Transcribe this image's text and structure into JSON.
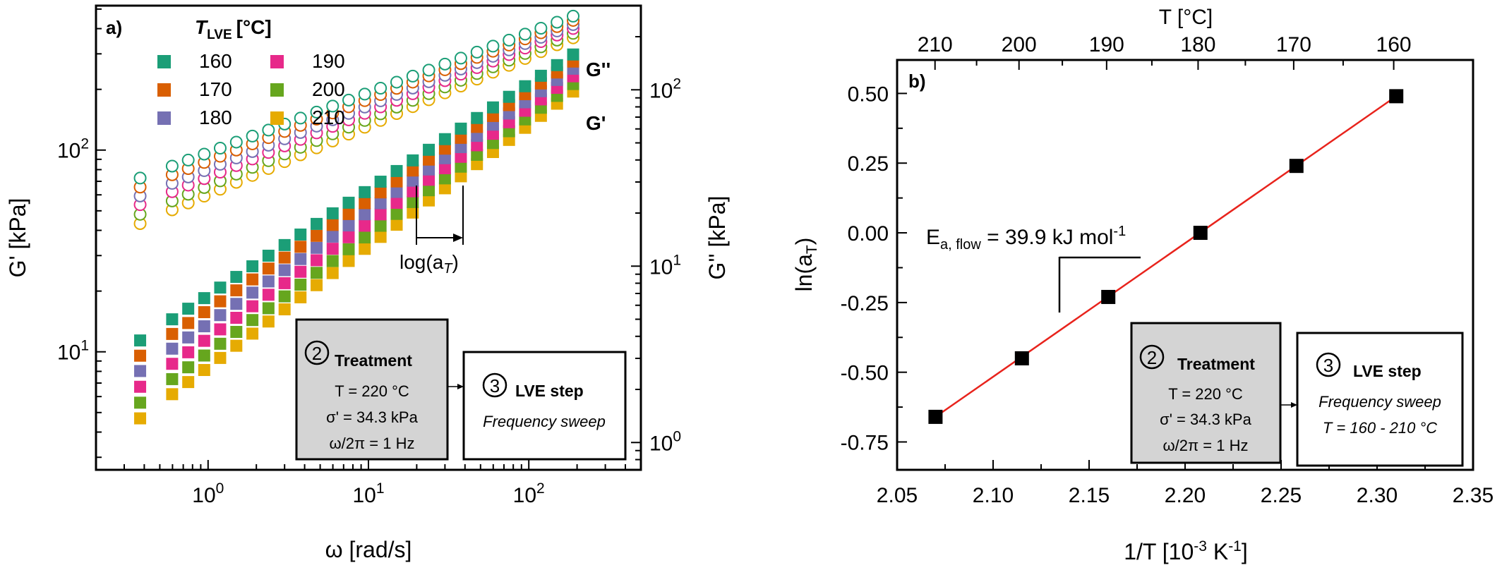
{
  "chart_data": [
    {
      "type": "scatter",
      "panel_label": "a)",
      "xlabel": "ω [rad/s]",
      "ylabel_left": "G' [kPa]",
      "ylabel_right": "G'' [kPa]",
      "xscale": "log",
      "yscale": "log",
      "xlim": [
        0.2,
        500
      ],
      "ylim_left": [
        2.6,
        520
      ],
      "ylim_right": [
        0.7,
        300
      ],
      "x_ticks": [
        {
          "value": 1,
          "label": "10^0"
        },
        {
          "value": 10,
          "label": "10^1"
        },
        {
          "value": 100,
          "label": "10^2"
        }
      ],
      "y_ticks_left": [
        {
          "value": 10,
          "label": "10^1"
        },
        {
          "value": 100,
          "label": "10^2"
        }
      ],
      "y_ticks_right": [
        {
          "value": 1,
          "label": "10^0"
        },
        {
          "value": 10,
          "label": "10^1"
        },
        {
          "value": 100,
          "label": "10^2"
        }
      ],
      "legend_title": "T_LVE [°C]",
      "legend_title_main": "T",
      "legend_title_sub": "LVE",
      "legend_title_unit": "[°C]",
      "legend_position": "top-left",
      "omega": [
        0.377,
        0.597,
        0.752,
        0.946,
        1.19,
        1.5,
        1.89,
        2.38,
        3.0,
        3.77,
        4.75,
        5.98,
        7.53,
        9.48,
        11.9,
        15.0,
        18.9,
        23.8,
        30.0,
        37.7,
        47.5,
        59.8,
        75.3,
        94.8,
        119.0,
        150.0,
        189.0
      ],
      "series": [
        {
          "name": "160",
          "color": "#1b9e77",
          "Gp_at_1": 19.0,
          "Gp_slope": 0.525,
          "Gpp_at_1": 44.0,
          "Gpp_slope": 0.34
        },
        {
          "name": "170",
          "color": "#d95f02",
          "Gp_at_1": 16.2,
          "Gp_slope": 0.54,
          "Gpp_at_1": 39.5,
          "Gpp_slope": 0.35
        },
        {
          "name": "180",
          "color": "#7570b3",
          "Gp_at_1": 13.8,
          "Gp_slope": 0.555,
          "Gpp_at_1": 35.5,
          "Gpp_slope": 0.36
        },
        {
          "name": "190",
          "color": "#e7298a",
          "Gp_at_1": 11.7,
          "Gp_slope": 0.57,
          "Gpp_at_1": 32.0,
          "Gpp_slope": 0.37
        },
        {
          "name": "200",
          "color": "#66a61e",
          "Gp_at_1": 9.9,
          "Gp_slope": 0.585,
          "Gpp_at_1": 28.5,
          "Gpp_slope": 0.38
        },
        {
          "name": "210",
          "color": "#e6ab02",
          "Gp_at_1": 8.4,
          "Gp_slope": 0.6,
          "Gpp_at_1": 25.5,
          "Gpp_slope": 0.39
        }
      ],
      "annotations": {
        "G_double_prime": "G''",
        "G_prime": "G'",
        "shift_label": "log(a_T)",
        "shift_label_main": "log(a",
        "shift_label_sub": "T",
        "shift_label_close": ")"
      },
      "boxes": {
        "treatment": {
          "number": "2",
          "title": "Treatment",
          "lines": [
            "T = 220 °C",
            "σ' = 34.3 kPa",
            "ω/2π = 1 Hz"
          ]
        },
        "lve": {
          "number": "3",
          "title": "LVE step",
          "lines": [
            "Frequency sweep"
          ]
        }
      }
    },
    {
      "type": "scatter",
      "panel_label": "b)",
      "xlabel": "1/T [10^-3 K^-1]",
      "ylabel": "ln(a_T)",
      "top_axis_label": "T [°C]",
      "xlim": [
        2.05,
        2.35
      ],
      "ylim": [
        -0.85,
        0.62
      ],
      "x_ticks": [
        2.05,
        2.1,
        2.15,
        2.2,
        2.25,
        2.3,
        2.35
      ],
      "y_ticks": [
        0.5,
        0.25,
        0.0,
        -0.25,
        -0.5,
        -0.75
      ],
      "top_ticks": [
        210,
        200,
        190,
        180,
        170,
        160
      ],
      "points": [
        {
          "x": 2.07,
          "y": -0.66
        },
        {
          "x": 2.115,
          "y": -0.45
        },
        {
          "x": 2.16,
          "y": -0.23
        },
        {
          "x": 2.208,
          "y": 0.0
        },
        {
          "x": 2.258,
          "y": 0.24
        },
        {
          "x": 2.31,
          "y": 0.49
        }
      ],
      "fit_line": {
        "x": [
          2.07,
          2.31
        ],
        "y": [
          -0.66,
          0.49
        ],
        "color": "#e8231c"
      },
      "annotation": "E_a, flow = 39.9 kJ mol^-1",
      "annotation_parts": {
        "main": "E",
        "sub": "a, flow",
        "value": " = 39.9 kJ mol",
        "sup": "-1"
      },
      "boxes": {
        "treatment": {
          "number": "2",
          "title": "Treatment",
          "lines": [
            "T = 220 °C",
            "σ' = 34.3 kPa",
            "ω/2π = 1 Hz"
          ]
        },
        "lve": {
          "number": "3",
          "title": "LVE step",
          "lines": [
            "Frequency sweep",
            "T = 160 - 210 °C"
          ]
        }
      }
    }
  ]
}
